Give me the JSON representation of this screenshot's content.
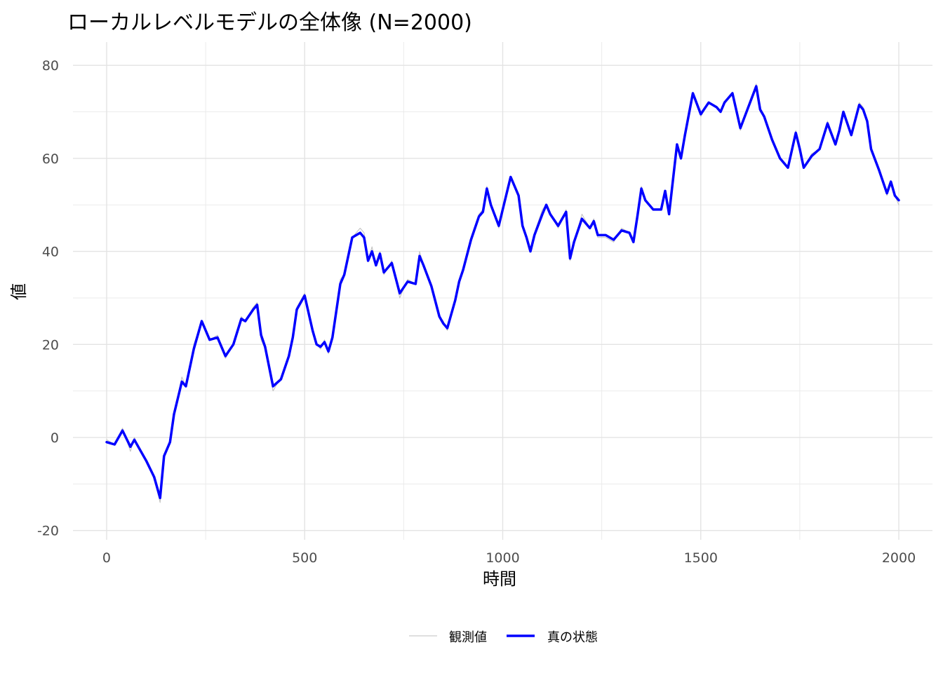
{
  "chart_data": {
    "type": "line",
    "title": "ローカルレベルモデルの全体像 (N=2000)",
    "xlabel": "時間",
    "ylabel": "値",
    "xlim": [
      -85,
      2085
    ],
    "ylim": [
      -22,
      85
    ],
    "xticks": [
      0,
      500,
      1000,
      1500,
      2000
    ],
    "xtick_labels": [
      "0",
      "500",
      "1000",
      "1500",
      "2000"
    ],
    "yticks": [
      -20,
      0,
      20,
      40,
      60,
      80
    ],
    "ytick_labels": [
      "-20",
      "0",
      "20",
      "40",
      "60",
      "80"
    ],
    "grid": true,
    "legend_position": "bottom",
    "x": [
      0,
      20,
      40,
      60,
      70,
      80,
      100,
      120,
      135,
      145,
      160,
      170,
      190,
      200,
      220,
      240,
      260,
      280,
      300,
      320,
      340,
      350,
      370,
      380,
      390,
      400,
      420,
      440,
      460,
      470,
      480,
      500,
      520,
      530,
      540,
      550,
      560,
      570,
      590,
      600,
      620,
      640,
      650,
      660,
      670,
      680,
      690,
      700,
      720,
      740,
      760,
      780,
      790,
      800,
      820,
      840,
      850,
      860,
      880,
      890,
      900,
      920,
      940,
      950,
      960,
      970,
      990,
      1000,
      1020,
      1040,
      1050,
      1060,
      1070,
      1080,
      1100,
      1110,
      1120,
      1140,
      1160,
      1170,
      1180,
      1200,
      1220,
      1230,
      1240,
      1260,
      1280,
      1300,
      1320,
      1330,
      1340,
      1350,
      1360,
      1380,
      1400,
      1410,
      1420,
      1440,
      1450,
      1460,
      1480,
      1500,
      1520,
      1540,
      1550,
      1560,
      1580,
      1600,
      1620,
      1640,
      1650,
      1660,
      1680,
      1700,
      1720,
      1740,
      1750,
      1760,
      1780,
      1800,
      1820,
      1840,
      1850,
      1860,
      1880,
      1900,
      1910,
      1920,
      1930,
      1950,
      1970,
      1980,
      1990,
      2000
    ],
    "series": [
      {
        "name": "観測値",
        "color": "#bfbfbf",
        "values": [
          -0.5,
          -1.5,
          2,
          -3,
          0,
          -2,
          -5,
          -9,
          -14,
          -4,
          -1,
          5,
          13,
          11,
          20,
          25,
          21,
          22,
          17,
          20,
          26,
          25,
          28,
          29,
          21,
          19,
          10,
          13,
          18,
          22,
          28,
          31,
          23,
          20,
          19,
          21,
          18,
          22,
          34,
          35,
          43,
          45,
          44,
          38,
          41,
          37,
          40,
          35,
          38,
          30,
          34,
          33,
          40,
          37,
          33,
          26,
          25,
          23,
          30,
          34,
          36,
          43,
          48,
          49,
          54,
          50,
          45,
          49,
          56,
          52,
          45,
          43,
          40,
          44,
          49,
          50,
          48,
          45,
          49,
          38,
          42,
          48,
          45,
          47,
          43,
          43,
          42,
          45,
          44,
          42,
          48,
          54,
          51,
          49,
          49,
          53,
          48,
          63,
          60,
          65,
          74,
          69,
          72,
          71,
          70,
          72,
          74,
          66,
          71,
          76,
          70,
          69,
          64,
          60,
          58,
          66,
          62,
          58,
          61,
          62,
          68,
          63,
          66,
          70,
          65,
          72,
          71,
          68,
          62,
          57,
          52,
          55,
          52,
          50
        ]
      },
      {
        "name": "真の状態",
        "color": "#0000ff",
        "values": [
          -1,
          -1.5,
          1.5,
          -2,
          -0.5,
          -2,
          -5,
          -8.5,
          -13,
          -4,
          -1,
          5,
          12,
          11,
          19,
          25,
          21,
          21.5,
          17.5,
          20,
          25.5,
          25,
          27.5,
          28.5,
          22,
          19.5,
          11,
          12.5,
          17.5,
          21.5,
          27.5,
          30.5,
          23,
          20,
          19.5,
          20.5,
          18.5,
          21.5,
          33,
          35,
          43,
          44,
          43,
          38,
          40,
          37,
          39.5,
          35.5,
          37.5,
          31,
          33.5,
          33,
          39,
          37,
          32.5,
          26,
          24.5,
          23.5,
          29.5,
          33.5,
          36,
          42.5,
          47.5,
          48.5,
          53.5,
          50,
          45.5,
          49,
          56,
          52,
          45.5,
          43,
          40,
          43.5,
          48,
          50,
          48,
          45.5,
          48.5,
          38.5,
          42,
          47,
          45,
          46.5,
          43.5,
          43.5,
          42.5,
          44.5,
          44,
          42,
          47.5,
          53.5,
          51,
          49,
          49,
          53,
          48,
          63,
          60,
          65,
          74,
          69.5,
          72,
          71,
          70,
          72,
          74,
          66.5,
          71,
          75.5,
          70.5,
          69,
          64,
          60,
          58,
          65.5,
          62,
          58,
          60.5,
          62,
          67.5,
          63,
          66,
          70,
          65,
          71.5,
          70.5,
          68,
          62,
          57.5,
          52.5,
          55,
          52,
          51
        ]
      }
    ]
  },
  "legend": {
    "items": [
      {
        "label": "観測値",
        "color": "#bfbfbf"
      },
      {
        "label": "真の状態",
        "color": "#0000ff"
      }
    ]
  }
}
